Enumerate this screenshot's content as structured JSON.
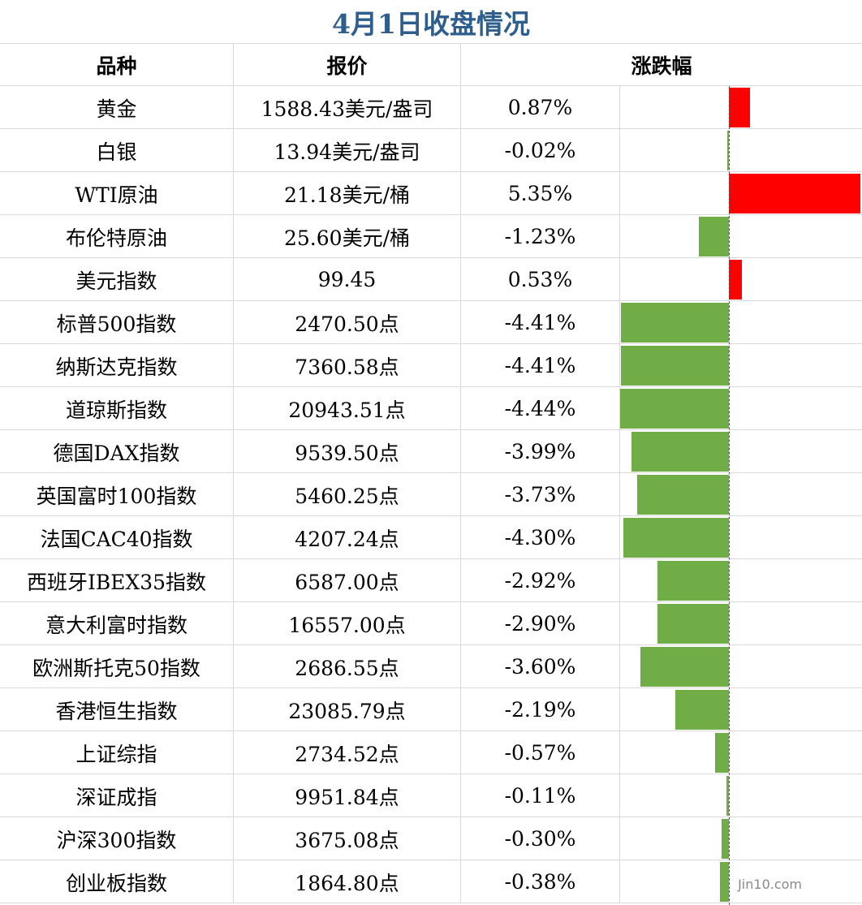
{
  "title": "4月1日收盘情况",
  "headers": {
    "name": "品种",
    "price": "报价",
    "change": "涨跌幅"
  },
  "colors": {
    "up": "#ff0000",
    "down": "#70ad47",
    "title": "#2e5e8e",
    "grid": "#d9d9d9"
  },
  "watermark": "Jin10.com",
  "rows": [
    {
      "name": "黄金",
      "price": "1588.43美元/盎司",
      "change_text": "0.87%",
      "change": 0.87
    },
    {
      "name": "白银",
      "price": "13.94美元/盎司",
      "change_text": "-0.02%",
      "change": -0.02
    },
    {
      "name": "WTI原油",
      "price": "21.18美元/桶",
      "change_text": "5.35%",
      "change": 5.35
    },
    {
      "name": "布伦特原油",
      "price": "25.60美元/桶",
      "change_text": "-1.23%",
      "change": -1.23
    },
    {
      "name": "美元指数",
      "price": "99.45",
      "change_text": "0.53%",
      "change": 0.53
    },
    {
      "name": "标普500指数",
      "price": "2470.50点",
      "change_text": "-4.41%",
      "change": -4.41
    },
    {
      "name": "纳斯达克指数",
      "price": "7360.58点",
      "change_text": "-4.41%",
      "change": -4.41
    },
    {
      "name": "道琼斯指数",
      "price": "20943.51点",
      "change_text": "-4.44%",
      "change": -4.44
    },
    {
      "name": "德国DAX指数",
      "price": "9539.50点",
      "change_text": "-3.99%",
      "change": -3.99
    },
    {
      "name": "英国富时100指数",
      "price": "5460.25点",
      "change_text": "-3.73%",
      "change": -3.73
    },
    {
      "name": "法国CAC40指数",
      "price": "4207.24点",
      "change_text": "-4.30%",
      "change": -4.3
    },
    {
      "name": "西班牙IBEX35指数",
      "price": "6587.00点",
      "change_text": "-2.92%",
      "change": -2.92
    },
    {
      "name": "意大利富时指数",
      "price": "16557.00点",
      "change_text": "-2.90%",
      "change": -2.9
    },
    {
      "name": "欧洲斯托克50指数",
      "price": "2686.55点",
      "change_text": "-3.60%",
      "change": -3.6
    },
    {
      "name": "香港恒生指数",
      "price": "23085.79点",
      "change_text": "-2.19%",
      "change": -2.19
    },
    {
      "name": "上证综指",
      "price": "2734.52点",
      "change_text": "-0.57%",
      "change": -0.57
    },
    {
      "name": "深证成指",
      "price": "9951.84点",
      "change_text": "-0.11%",
      "change": -0.11
    },
    {
      "name": "沪深300指数",
      "price": "3675.08点",
      "change_text": "-0.30%",
      "change": -0.3
    },
    {
      "name": "创业板指数",
      "price": "1864.80点",
      "change_text": "-0.38%",
      "change": -0.38
    }
  ]
}
